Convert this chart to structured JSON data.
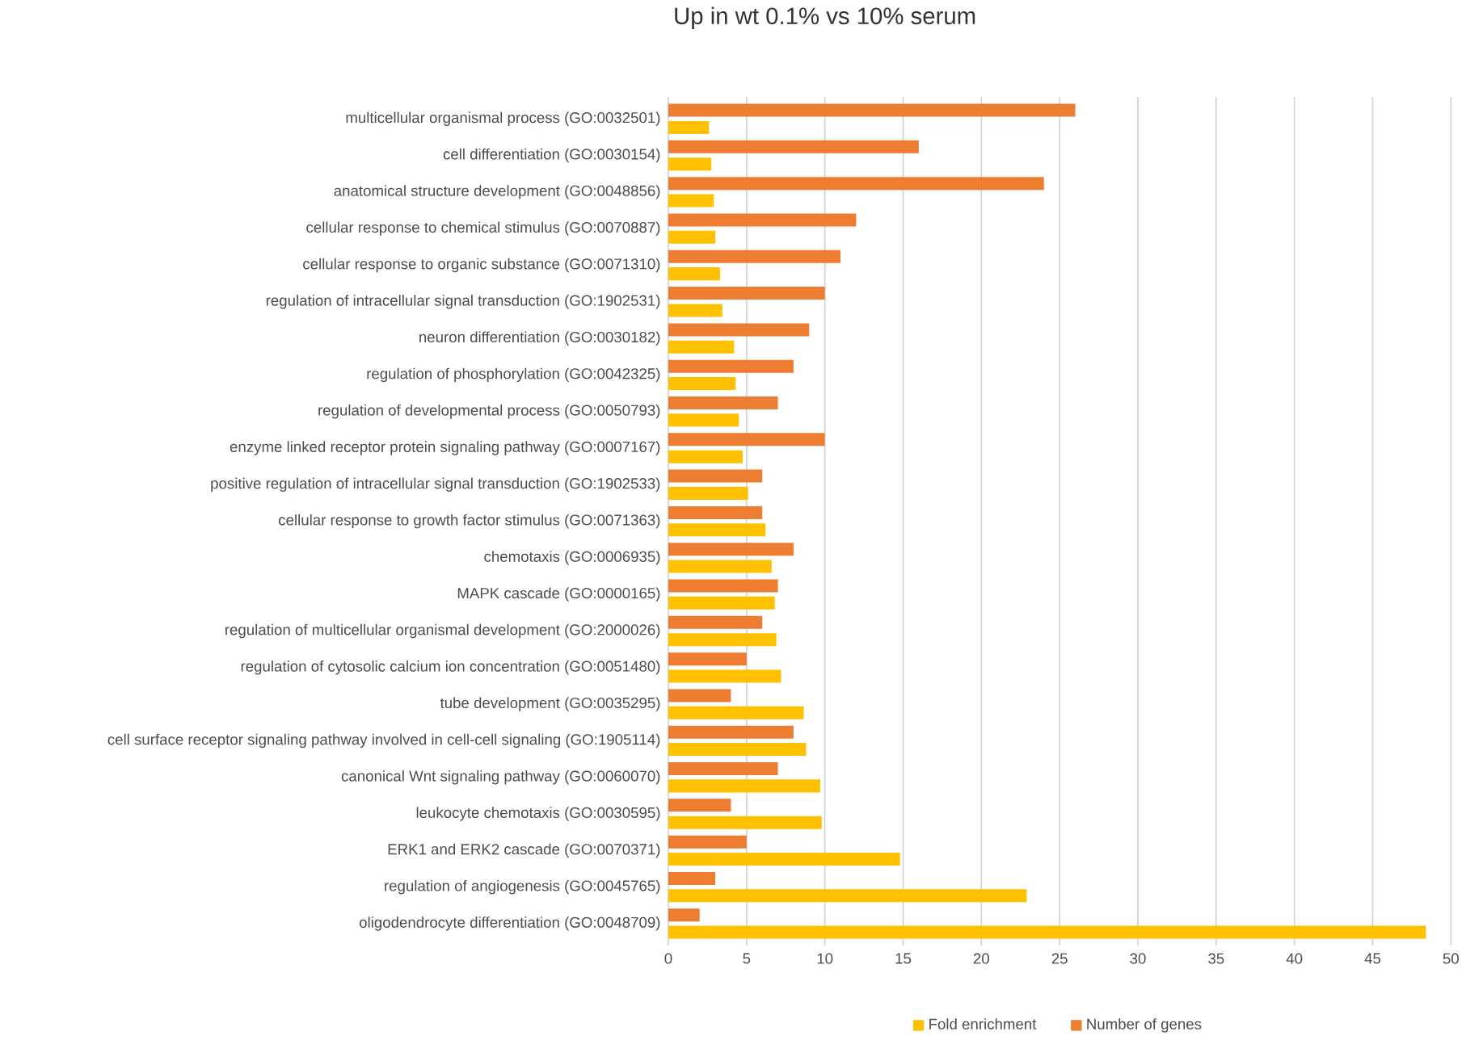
{
  "chart_data": {
    "type": "bar",
    "orientation": "horizontal",
    "title": "Up in wt 0.1% vs 10% serum",
    "categories": [
      "multicellular organismal process (GO:0032501)",
      "cell differentiation (GO:0030154)",
      "anatomical structure development (GO:0048856)",
      "cellular response to chemical stimulus (GO:0070887)",
      "cellular response to organic substance (GO:0071310)",
      "regulation of intracellular signal transduction (GO:1902531)",
      "neuron differentiation (GO:0030182)",
      "regulation of phosphorylation (GO:0042325)",
      "regulation of developmental process (GO:0050793)",
      "enzyme linked receptor protein signaling pathway (GO:0007167)",
      "positive regulation of intracellular signal transduction (GO:1902533)",
      "cellular response to growth factor stimulus (GO:0071363)",
      "chemotaxis (GO:0006935)",
      "MAPK cascade (GO:0000165)",
      "regulation of multicellular organismal development (GO:2000026)",
      "regulation of cytosolic calcium ion concentration (GO:0051480)",
      "tube development (GO:0035295)",
      "cell surface receptor signaling pathway involved in cell-cell signaling (GO:1905114)",
      "canonical Wnt signaling pathway (GO:0060070)",
      "leukocyte chemotaxis (GO:0030595)",
      "ERK1 and ERK2 cascade (GO:0070371)",
      "regulation of angiogenesis (GO:0045765)",
      "oligodendrocyte differentiation (GO:0048709)"
    ],
    "series": [
      {
        "name": "Fold enrichment",
        "color": "#ffc000",
        "values": [
          2.6,
          2.75,
          2.9,
          3.0,
          3.3,
          3.45,
          4.2,
          4.3,
          4.5,
          4.75,
          5.1,
          6.2,
          6.6,
          6.8,
          6.9,
          7.2,
          8.65,
          8.8,
          9.7,
          9.8,
          14.8,
          22.9,
          48.4
        ]
      },
      {
        "name": "Number of genes",
        "color": "#ed7d31",
        "values": [
          26,
          16,
          24,
          12,
          11,
          10,
          9,
          8,
          7,
          10,
          6,
          6,
          8,
          7,
          6,
          5,
          4,
          8,
          7,
          4,
          5,
          3,
          2
        ]
      }
    ],
    "xlim": [
      0,
      50
    ],
    "xticks": [
      0,
      5,
      10,
      15,
      20,
      25,
      30,
      35,
      40,
      45,
      50
    ],
    "grid": "x",
    "legend": "bottom"
  }
}
